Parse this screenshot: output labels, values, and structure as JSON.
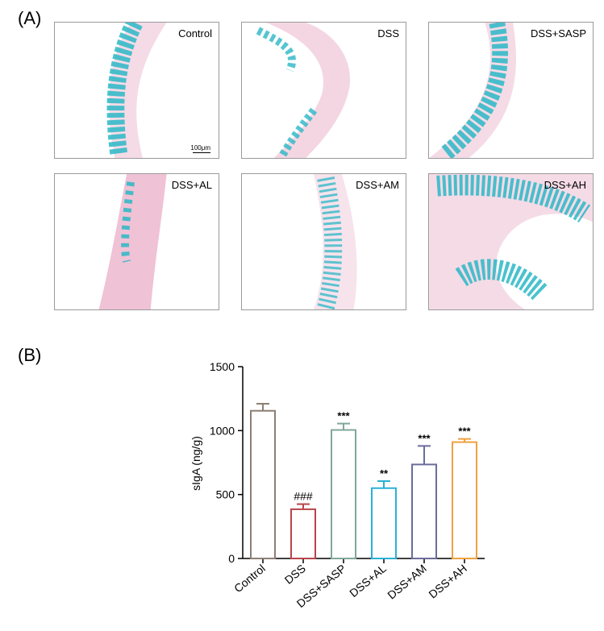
{
  "panel_a": {
    "label": "(A)",
    "images": [
      {
        "label": "Control",
        "scale_bar": "100μm"
      },
      {
        "label": "DSS"
      },
      {
        "label": "DSS+SASP"
      },
      {
        "label": "DSS+AL"
      },
      {
        "label": "DSS+AM"
      },
      {
        "label": "DSS+AH"
      }
    ],
    "stain_colors": {
      "goblet": "#2ab7c6",
      "tissue": "#f2c6d9"
    }
  },
  "panel_b": {
    "label": "(B)"
  },
  "chart_data": {
    "type": "bar",
    "categories": [
      "Control",
      "DSS",
      "DSS+SASP",
      "DSS+AL",
      "DSS+AM",
      "DSS+AH"
    ],
    "values": [
      1155,
      385,
      1005,
      550,
      735,
      910
    ],
    "errors": [
      55,
      40,
      50,
      55,
      145,
      25
    ],
    "colors": [
      "#8c7f74",
      "#b8454a",
      "#7fa89a",
      "#2ab0d6",
      "#6c6c9c",
      "#f0a040"
    ],
    "annotations": [
      "",
      "###",
      "***",
      "**",
      "***",
      "***"
    ],
    "ylabel": "sIgA (ng/g)",
    "ylim": [
      0,
      1500
    ],
    "yticks": [
      0,
      500,
      1000,
      1500
    ],
    "grid": false
  }
}
